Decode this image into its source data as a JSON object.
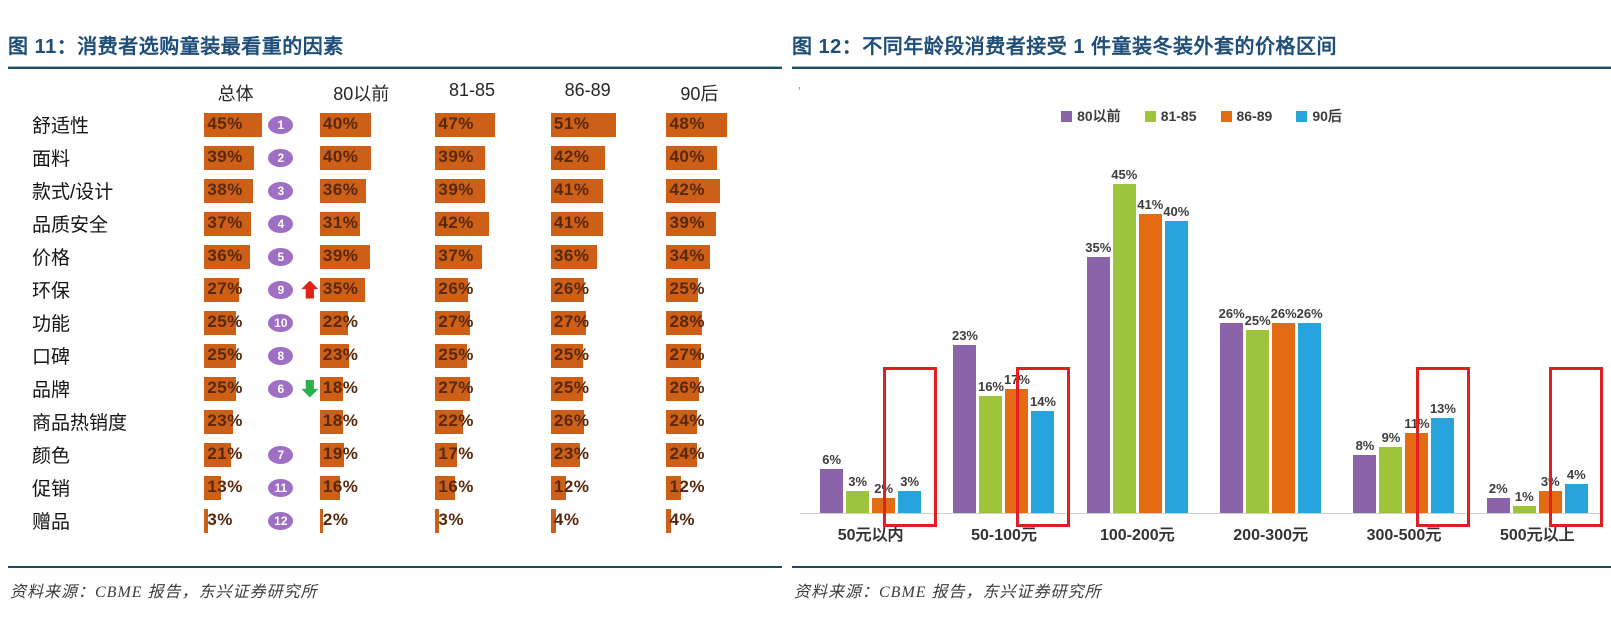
{
  "figure11": {
    "title": "图 11：消费者选购童装最看重的因素",
    "columns": [
      "总体",
      "80以前",
      "81-85",
      "86-89",
      "90后"
    ],
    "rows": [
      {
        "label": "舒适性",
        "values": [
          45,
          40,
          47,
          51,
          48
        ],
        "rank": 1,
        "trend": null
      },
      {
        "label": "面料",
        "values": [
          39,
          40,
          39,
          42,
          40
        ],
        "rank": 2,
        "trend": null
      },
      {
        "label": "款式/设计",
        "values": [
          38,
          36,
          39,
          41,
          42
        ],
        "rank": 3,
        "trend": null
      },
      {
        "label": "品质安全",
        "values": [
          37,
          31,
          42,
          41,
          39
        ],
        "rank": 4,
        "trend": null
      },
      {
        "label": "价格",
        "values": [
          36,
          39,
          37,
          36,
          34
        ],
        "rank": 5,
        "trend": null
      },
      {
        "label": "环保",
        "values": [
          27,
          35,
          26,
          26,
          25
        ],
        "rank": 9,
        "trend": "up"
      },
      {
        "label": "功能",
        "values": [
          25,
          22,
          27,
          27,
          28
        ],
        "rank": 10,
        "trend": null
      },
      {
        "label": "口碑",
        "values": [
          25,
          23,
          25,
          25,
          27
        ],
        "rank": 8,
        "trend": null
      },
      {
        "label": "品牌",
        "values": [
          25,
          18,
          27,
          25,
          26
        ],
        "rank": 6,
        "trend": "down"
      },
      {
        "label": "商品热销度",
        "values": [
          23,
          18,
          22,
          26,
          24
        ],
        "rank": null,
        "trend": null
      },
      {
        "label": "颜色",
        "values": [
          21,
          19,
          17,
          23,
          24
        ],
        "rank": 7,
        "trend": null
      },
      {
        "label": "促销",
        "values": [
          13,
          16,
          16,
          12,
          12
        ],
        "rank": 11,
        "trend": null
      },
      {
        "label": "赠品",
        "values": [
          3,
          2,
          3,
          4,
          4
        ],
        "rank": 12,
        "trend": null
      }
    ],
    "unit": "%",
    "bar_color": "#cd5f17",
    "source": "资料来源：CBME 报告，东兴证券研究所"
  },
  "figure12": {
    "title": "图 12：不同年龄段消费者接受 1 件童装冬装外套的价格区间",
    "categories": [
      "50元以内",
      "50-100元",
      "100-200元",
      "200-300元",
      "300-500元",
      "500元以上"
    ],
    "series": [
      {
        "name": "80以前",
        "color": "#8a63a8",
        "values": [
          6,
          23,
          35,
          26,
          8,
          2
        ]
      },
      {
        "name": "81-85",
        "color": "#9dc43b",
        "values": [
          3,
          16,
          45,
          25,
          9,
          1
        ]
      },
      {
        "name": "86-89",
        "color": "#e56b13",
        "values": [
          2,
          17,
          41,
          26,
          11,
          3
        ]
      },
      {
        "name": "90后",
        "color": "#28a4dd",
        "values": [
          3,
          14,
          40,
          26,
          13,
          4
        ]
      }
    ],
    "unit": "%",
    "highlight_color": "#e02020",
    "highlighted_groups": [
      0,
      1,
      4,
      5
    ],
    "stray_mark": "’",
    "source": "资料来源：CBME 报告，东兴证券研究所"
  },
  "chart_data": [
    {
      "type": "bar",
      "orientation": "horizontal",
      "title": "图 11：消费者选购童装最看重的因素",
      "categories": [
        "舒适性",
        "面料",
        "款式/设计",
        "品质安全",
        "价格",
        "环保",
        "功能",
        "口碑",
        "品牌",
        "商品热销度",
        "颜色",
        "促销",
        "赠品"
      ],
      "series": [
        {
          "name": "总体",
          "values": [
            45,
            39,
            38,
            37,
            36,
            27,
            25,
            25,
            25,
            23,
            21,
            13,
            3
          ]
        },
        {
          "name": "80以前",
          "values": [
            40,
            40,
            36,
            31,
            39,
            35,
            22,
            23,
            18,
            18,
            19,
            16,
            2
          ]
        },
        {
          "name": "81-85",
          "values": [
            47,
            39,
            39,
            42,
            37,
            26,
            27,
            25,
            27,
            22,
            17,
            16,
            3
          ]
        },
        {
          "name": "86-89",
          "values": [
            51,
            42,
            41,
            41,
            36,
            26,
            27,
            25,
            25,
            26,
            23,
            12,
            4
          ]
        },
        {
          "name": "90后",
          "values": [
            48,
            40,
            42,
            39,
            34,
            25,
            28,
            27,
            26,
            24,
            24,
            12,
            4
          ]
        }
      ],
      "annotations": {
        "overall_ranks": [
          1,
          2,
          3,
          4,
          5,
          9,
          10,
          8,
          6,
          null,
          7,
          11,
          12
        ],
        "trend_arrows": {
          "环保": "up",
          "品牌": "down"
        }
      },
      "unit": "%",
      "grid": false,
      "source": "资料来源：CBME 报告，东兴证券研究所"
    },
    {
      "type": "bar",
      "orientation": "vertical",
      "title": "图 12：不同年龄段消费者接受 1 件童装冬装外套的价格区间",
      "categories": [
        "50元以内",
        "50-100元",
        "100-200元",
        "200-300元",
        "300-500元",
        "500元以上"
      ],
      "series": [
        {
          "name": "80以前",
          "values": [
            6,
            23,
            35,
            26,
            8,
            2
          ]
        },
        {
          "name": "81-85",
          "values": [
            3,
            16,
            45,
            25,
            9,
            1
          ]
        },
        {
          "name": "86-89",
          "values": [
            2,
            17,
            41,
            26,
            11,
            3
          ]
        },
        {
          "name": "90后",
          "values": [
            3,
            14,
            40,
            26,
            13,
            4
          ]
        }
      ],
      "unit": "%",
      "ylim": [
        0,
        50
      ],
      "grid": false,
      "legend_position": "top",
      "annotations": {
        "red_boxes_on_90后_bars": [
          "50元以内",
          "50-100元",
          "300-500元",
          "500元以上"
        ]
      },
      "source": "资料来源：CBME 报告，东兴证券研究所"
    }
  ]
}
